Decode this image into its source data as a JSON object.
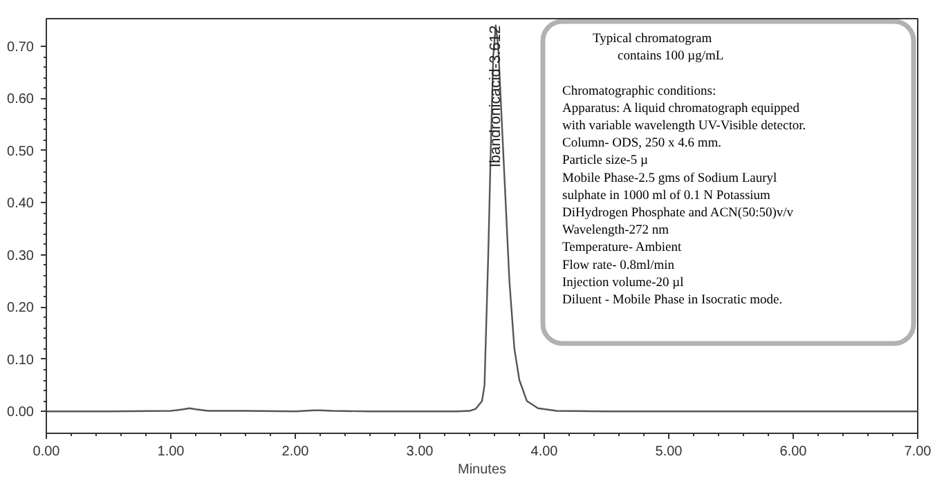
{
  "chart_data": {
    "type": "line",
    "xlabel": "Minutes",
    "series": [
      {
        "color": "#555555",
        "x": [
          0,
          0.5,
          1.0,
          1.1,
          1.15,
          1.2,
          1.3,
          1.6,
          2.0,
          2.15,
          2.2,
          2.3,
          2.6,
          3.0,
          3.3,
          3.4,
          3.45,
          3.5,
          3.52,
          3.55,
          3.57,
          3.59,
          3.61,
          3.63,
          3.66,
          3.69,
          3.72,
          3.76,
          3.8,
          3.86,
          3.95,
          4.1,
          4.5,
          5.0,
          5.5,
          6.0,
          6.5,
          7.0
        ],
        "values": [
          0,
          0,
          0.001,
          0.004,
          0.006,
          0.004,
          0.001,
          0.001,
          0,
          0.002,
          0.002,
          0.001,
          0,
          0,
          0,
          0.001,
          0.005,
          0.02,
          0.05,
          0.3,
          0.5,
          0.68,
          0.74,
          0.7,
          0.55,
          0.4,
          0.25,
          0.12,
          0.06,
          0.02,
          0.006,
          0.001,
          0,
          0,
          0,
          0,
          0,
          0
        ]
      }
    ],
    "xlim": [
      0,
      7
    ],
    "ylim": [
      -0.042,
      0.753
    ],
    "xticks": [
      {
        "value": 0,
        "label": "0.00"
      },
      {
        "value": 1,
        "label": "1.00"
      },
      {
        "value": 2,
        "label": "2.00"
      },
      {
        "value": 3,
        "label": "3.00"
      },
      {
        "value": 4,
        "label": "4.00"
      },
      {
        "value": 5,
        "label": "5.00"
      },
      {
        "value": 6,
        "label": "6.00"
      },
      {
        "value": 7,
        "label": "7.00"
      }
    ],
    "yticks": [
      {
        "value": 0,
        "label": "0.00"
      },
      {
        "value": 0.1,
        "label": "0.10"
      },
      {
        "value": 0.2,
        "label": "0.20"
      },
      {
        "value": 0.3,
        "label": "0.30"
      },
      {
        "value": 0.4,
        "label": "0.40"
      },
      {
        "value": 0.5,
        "label": "0.50"
      },
      {
        "value": 0.6,
        "label": "0.60"
      },
      {
        "value": 0.7,
        "label": "0.70"
      }
    ],
    "grid": false,
    "annotations": [
      {
        "text": "Ibandronicacid-3.612",
        "x": 3.612,
        "y": 0.74
      },
      "Typical chromatogram",
      "contains 100 µg/mL",
      "Chromatographic conditions:",
      "Apparatus: A liquid chromatograph equipped",
      "with variable wavelength UV-Visible detector.",
      "Column- ODS, 250 x 4.6 mm.",
      "Particle size-5 µ",
      "Mobile Phase-2.5 gms of Sodium Lauryl",
      "sulphate in 1000 ml of 0.1 N Potassium",
      "DiHydrogen Phosphate and ACN(50:50)v/v",
      "Wavelength-272 nm",
      "Temperature- Ambient",
      "Flow rate- 0.8ml/min",
      "Injection volume-20 µl",
      "Diluent - Mobile Phase in Isocratic mode."
    ]
  }
}
